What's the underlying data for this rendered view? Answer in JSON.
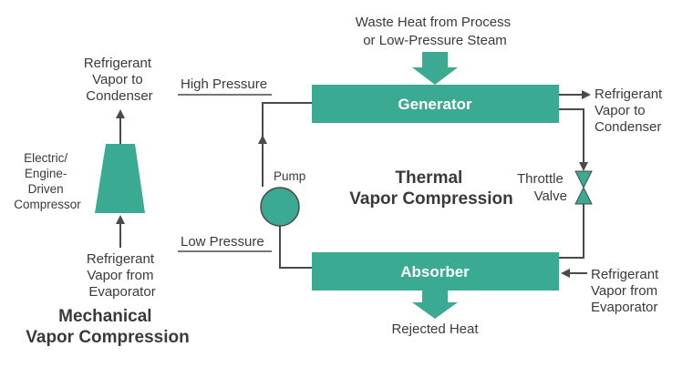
{
  "colors": {
    "teal": "#3aaa93",
    "line": "#4a4a4a",
    "text": "#3a3a3a"
  },
  "mechanical": {
    "top_label": [
      "Refrigerant",
      "Vapor to",
      "Condenser"
    ],
    "compressor_label": [
      "Electric/",
      "Engine-",
      "Driven",
      "Compressor"
    ],
    "bottom_label": [
      "Refrigerant",
      "Vapor from",
      "Evaporator"
    ],
    "title": [
      "Mechanical",
      "Vapor Compression"
    ]
  },
  "pressure": {
    "high": "High Pressure",
    "low": "Low Pressure"
  },
  "thermal": {
    "heat_input": [
      "Waste Heat from Process",
      "or Low-Pressure Steam"
    ],
    "generator": "Generator",
    "absorber": "Absorber",
    "pump": "Pump",
    "title": [
      "Thermal",
      "Vapor Compression"
    ],
    "gen_output": [
      "Refrigerant",
      "Vapor to",
      "Condenser"
    ],
    "throttle": [
      "Throttle",
      "Valve"
    ],
    "abs_input": [
      "Refrigerant",
      "Vapor from",
      "Evaporator"
    ],
    "rejected": "Rejected Heat"
  }
}
